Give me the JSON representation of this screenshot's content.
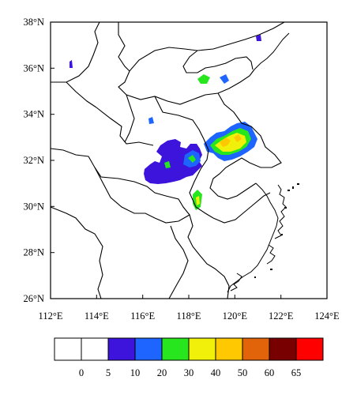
{
  "map": {
    "lon_range": [
      112,
      124
    ],
    "lat_range": [
      26,
      38
    ],
    "x_ticks": [
      "112°E",
      "114°E",
      "116°E",
      "118°E",
      "120°E",
      "122°E",
      "124°E"
    ],
    "y_ticks": [
      "38°N",
      "36°N",
      "34°N",
      "32°N",
      "30°N",
      "28°N",
      "26°N"
    ],
    "features": [
      "province-boundaries",
      "coastline",
      "islands"
    ]
  },
  "legend": {
    "labels": [
      "0",
      "5",
      "10",
      "20",
      "30",
      "40",
      "50",
      "60",
      "65"
    ],
    "colors": [
      "#ffffff",
      "#ffffff",
      "#3d14dc",
      "#1e64ff",
      "#28e61e",
      "#f0f00a",
      "#ffc800",
      "#e1640a",
      "#780000",
      "#ff0000"
    ]
  },
  "shading": {
    "description_colors_used": [
      "#3d14dc",
      "#1e64ff",
      "#28e61e",
      "#f0f00a",
      "#ffc800"
    ]
  }
}
